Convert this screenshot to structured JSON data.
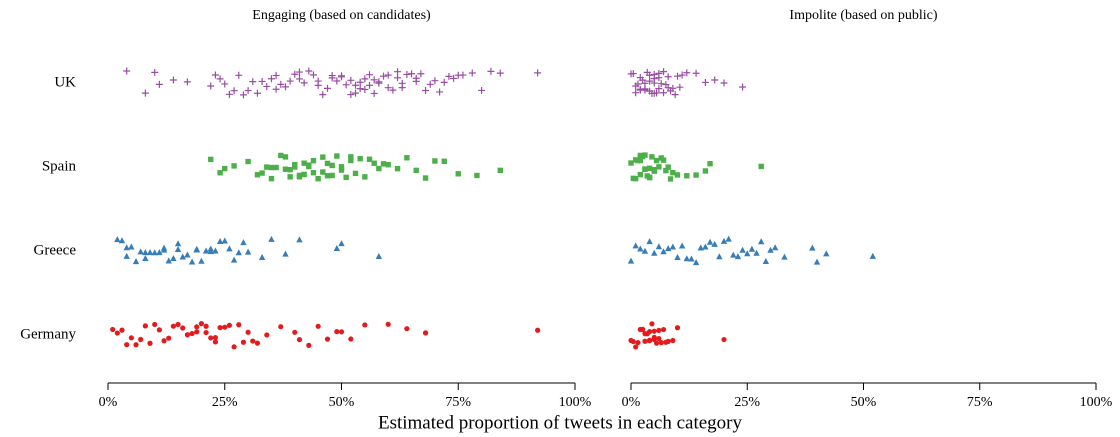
{
  "chart_data": [
    {
      "type": "strip",
      "title": "Engaging (based on candidates)",
      "xlabel": "Estimated proportion of tweets in each category",
      "categories": [
        "UK",
        "Spain",
        "Greece",
        "Germany"
      ],
      "xlim": [
        0,
        100
      ],
      "xticks": [
        {
          "value": 0,
          "label": "0%"
        },
        {
          "value": 25,
          "label": "25%"
        },
        {
          "value": 50,
          "label": "50%"
        },
        {
          "value": 75,
          "label": "75%"
        },
        {
          "value": 100,
          "label": "100%"
        }
      ],
      "series": [
        {
          "color": "#984ea3",
          "marker": "plus",
          "values": [
            4,
            8,
            10,
            11,
            14,
            17,
            22,
            23,
            24,
            25,
            26,
            27,
            28,
            29,
            30,
            31,
            32,
            33,
            34,
            35,
            36,
            37,
            38,
            39,
            40,
            41,
            42,
            43,
            44,
            45,
            46,
            47,
            48,
            49,
            50,
            51,
            52,
            53,
            54,
            55,
            56,
            57,
            58,
            59,
            60,
            61,
            62,
            63,
            64,
            65,
            66,
            67,
            68,
            69,
            70,
            71,
            72,
            73,
            74,
            75,
            76,
            78,
            80,
            82,
            84,
            92,
            45,
            50,
            52,
            55,
            57,
            58,
            60,
            62,
            48,
            53,
            56,
            63,
            36,
            41,
            54,
            66
          ]
        },
        {
          "color": "#4daf4a",
          "marker": "square",
          "values": [
            22,
            24,
            25,
            27,
            30,
            32,
            33,
            34,
            35,
            36,
            37,
            38,
            39,
            40,
            41,
            42,
            43,
            44,
            45,
            46,
            47,
            48,
            49,
            50,
            51,
            52,
            53,
            54,
            55,
            56,
            57,
            58,
            59,
            60,
            62,
            64,
            66,
            68,
            70,
            72,
            75,
            79,
            84,
            38,
            40,
            42,
            44,
            46,
            48,
            35,
            41,
            43,
            47,
            50,
            52,
            39
          ]
        },
        {
          "color": "#377eb8",
          "marker": "triangle",
          "values": [
            2,
            3,
            4,
            5,
            6,
            7,
            8,
            9,
            10,
            11,
            12,
            13,
            14,
            15,
            16,
            17,
            18,
            19,
            20,
            21,
            22,
            23,
            24,
            25,
            26,
            27,
            28,
            29,
            30,
            33,
            35,
            38,
            41,
            49,
            50,
            58,
            4,
            8,
            12,
            15,
            19,
            22
          ]
        },
        {
          "color": "#e41a1c",
          "marker": "circle",
          "values": [
            1,
            2,
            3,
            4,
            5,
            6,
            7,
            8,
            9,
            10,
            11,
            12,
            13,
            14,
            15,
            16,
            17,
            18,
            19,
            20,
            21,
            22,
            23,
            24,
            25,
            26,
            27,
            28,
            29,
            30,
            31,
            32,
            34,
            37,
            40,
            41,
            43,
            45,
            47,
            49,
            50,
            52,
            55,
            60,
            64,
            68,
            92,
            19,
            21,
            23
          ]
        }
      ]
    },
    {
      "type": "strip",
      "title": "Impolite (based on public)",
      "xlim": [
        0,
        100
      ],
      "xticks": [
        {
          "value": 0,
          "label": "0%"
        },
        {
          "value": 25,
          "label": "25%"
        },
        {
          "value": 50,
          "label": "50%"
        },
        {
          "value": 75,
          "label": "75%"
        },
        {
          "value": 100,
          "label": "100%"
        }
      ],
      "series": [
        {
          "color": "#984ea3",
          "marker": "plus",
          "values": [
            0,
            0.5,
            1,
            1.5,
            2,
            2.5,
            3,
            3.5,
            4,
            4.5,
            5,
            5.5,
            6,
            6.5,
            7,
            7.5,
            8,
            8.5,
            9,
            9.5,
            10,
            10.5,
            11,
            12,
            1,
            2,
            3,
            4,
            5,
            6,
            7,
            8,
            3,
            4,
            5,
            6,
            2,
            5,
            14,
            16,
            18,
            20,
            24
          ]
        },
        {
          "color": "#4daf4a",
          "marker": "square",
          "values": [
            0,
            0.5,
            1,
            1.5,
            2,
            2.5,
            3,
            3.5,
            4,
            4.5,
            5,
            5.5,
            6,
            6.5,
            7,
            7.5,
            8,
            8.5,
            9,
            10,
            1,
            2,
            3,
            4,
            5,
            2,
            3,
            4,
            12,
            14,
            16,
            17,
            28
          ]
        },
        {
          "color": "#377eb8",
          "marker": "triangle",
          "values": [
            0,
            1,
            2,
            3,
            4,
            5,
            6,
            7,
            8,
            9,
            10,
            11,
            12,
            13,
            14,
            15,
            16,
            17,
            18,
            19,
            20,
            21,
            22,
            23,
            24,
            25,
            26,
            27,
            28,
            29,
            30,
            31,
            33,
            39,
            40,
            42,
            52
          ]
        },
        {
          "color": "#e41a1c",
          "marker": "circle",
          "values": [
            0,
            0.5,
            1,
            1.5,
            2,
            2.5,
            3,
            3.5,
            4,
            4.5,
            5,
            5.5,
            6,
            6.5,
            7,
            7.5,
            8,
            9,
            10,
            3,
            4,
            5,
            6,
            4,
            5,
            20
          ]
        }
      ]
    }
  ]
}
